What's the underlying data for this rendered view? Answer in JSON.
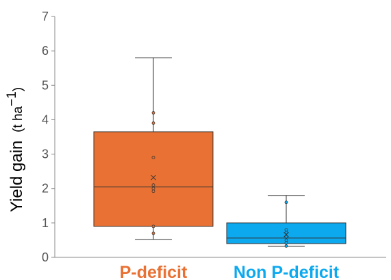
{
  "chart_data": {
    "type": "box",
    "ylabel_main": "Yield gain",
    "ylabel_unit_open": "(t ha",
    "ylabel_unit_sup": "−1",
    "ylabel_unit_close": ")",
    "ylim": [
      0,
      7
    ],
    "yticks": [
      "0",
      "1",
      "2",
      "3",
      "4",
      "5",
      "6",
      "7"
    ],
    "grid": false,
    "categories": [
      "P-deficit",
      "Non P-deficit"
    ],
    "series": [
      {
        "category": "P-deficit",
        "color": "#E87133",
        "label_color": "#E87133",
        "whisker_low": 0.52,
        "q1": 0.9,
        "median": 2.05,
        "q3": 3.65,
        "whisker_high": 5.8,
        "mean": 2.32,
        "points": [
          4.2,
          3.9,
          2.9,
          2.1,
          2.0,
          1.92,
          0.9,
          0.7
        ]
      },
      {
        "category": "Non P-deficit",
        "color": "#0DA9EF",
        "label_color": "#0DA9EF",
        "whisker_low": 0.32,
        "q1": 0.4,
        "median": 0.56,
        "q3": 1.0,
        "whisker_high": 1.8,
        "mean": 0.66,
        "points": [
          1.6,
          0.8,
          0.72,
          0.6,
          0.5,
          0.42,
          0.33
        ]
      }
    ]
  }
}
